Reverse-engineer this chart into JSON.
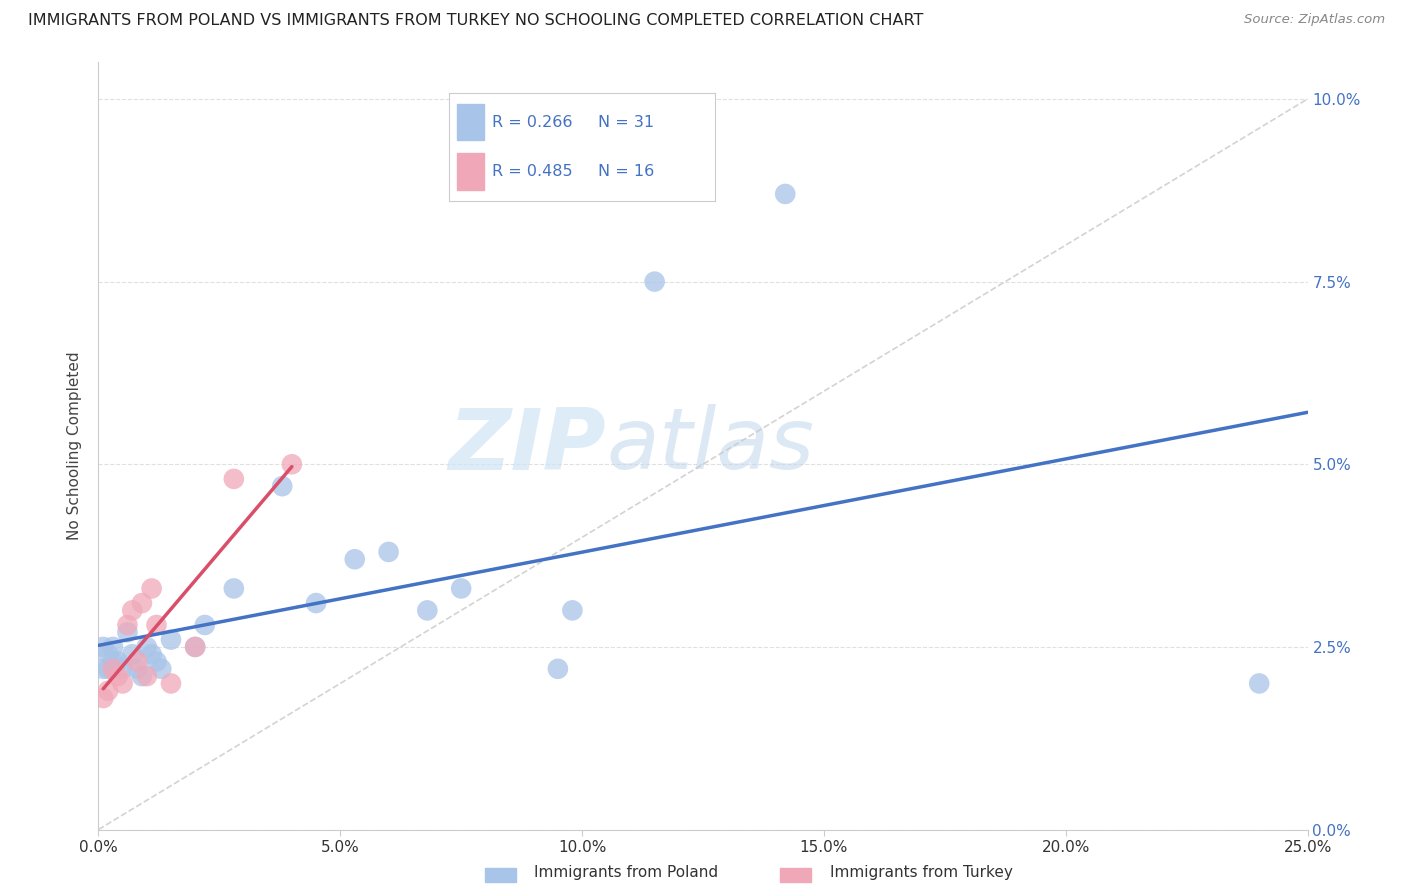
{
  "title": "IMMIGRANTS FROM POLAND VS IMMIGRANTS FROM TURKEY NO SCHOOLING COMPLETED CORRELATION CHART",
  "source": "Source: ZipAtlas.com",
  "ylabel": "No Schooling Completed",
  "xlabel_ticks": [
    "0.0%",
    "5.0%",
    "10.0%",
    "15.0%",
    "20.0%",
    "25.0%"
  ],
  "xlabel_tick_vals": [
    0.0,
    0.05,
    0.1,
    0.15,
    0.2,
    0.25
  ],
  "ylabel_ticks": [
    "0.0%",
    "2.5%",
    "5.0%",
    "7.5%",
    "10.0%"
  ],
  "ylabel_tick_vals": [
    0.0,
    0.025,
    0.05,
    0.075,
    0.1
  ],
  "xmin": 0.0,
  "xmax": 0.25,
  "ymin": 0.0,
  "ymax": 0.105,
  "poland_x": [
    0.001,
    0.001,
    0.002,
    0.002,
    0.003,
    0.003,
    0.004,
    0.005,
    0.006,
    0.007,
    0.008,
    0.009,
    0.01,
    0.011,
    0.012,
    0.013,
    0.015,
    0.02,
    0.022,
    0.028,
    0.038,
    0.045,
    0.053,
    0.06,
    0.068,
    0.075,
    0.095,
    0.098,
    0.115,
    0.142,
    0.24
  ],
  "poland_y": [
    0.022,
    0.025,
    0.022,
    0.024,
    0.023,
    0.025,
    0.023,
    0.022,
    0.027,
    0.024,
    0.022,
    0.021,
    0.025,
    0.024,
    0.023,
    0.022,
    0.026,
    0.025,
    0.028,
    0.033,
    0.047,
    0.031,
    0.037,
    0.038,
    0.03,
    0.033,
    0.022,
    0.03,
    0.075,
    0.087,
    0.02
  ],
  "turkey_x": [
    0.001,
    0.002,
    0.003,
    0.004,
    0.005,
    0.006,
    0.007,
    0.008,
    0.009,
    0.01,
    0.011,
    0.012,
    0.015,
    0.02,
    0.028,
    0.04
  ],
  "turkey_y": [
    0.018,
    0.019,
    0.022,
    0.021,
    0.02,
    0.028,
    0.03,
    0.023,
    0.031,
    0.021,
    0.033,
    0.028,
    0.02,
    0.025,
    0.048,
    0.05
  ],
  "poland_color": "#a8c4e8",
  "turkey_color": "#f0a8b8",
  "poland_line_color": "#4472c4",
  "turkey_line_color": "#d94f6a",
  "diag_line_color": "#c8c8c8",
  "r_poland": 0.266,
  "n_poland": 31,
  "r_turkey": 0.485,
  "n_turkey": 16,
  "legend_poland": "Immigrants from Poland",
  "legend_turkey": "Immigrants from Turkey",
  "watermark_zip": "ZIP",
  "watermark_atlas": "atlas",
  "background_color": "#ffffff",
  "grid_color": "#e0e0e0",
  "legend_text_color": "#4472c4"
}
